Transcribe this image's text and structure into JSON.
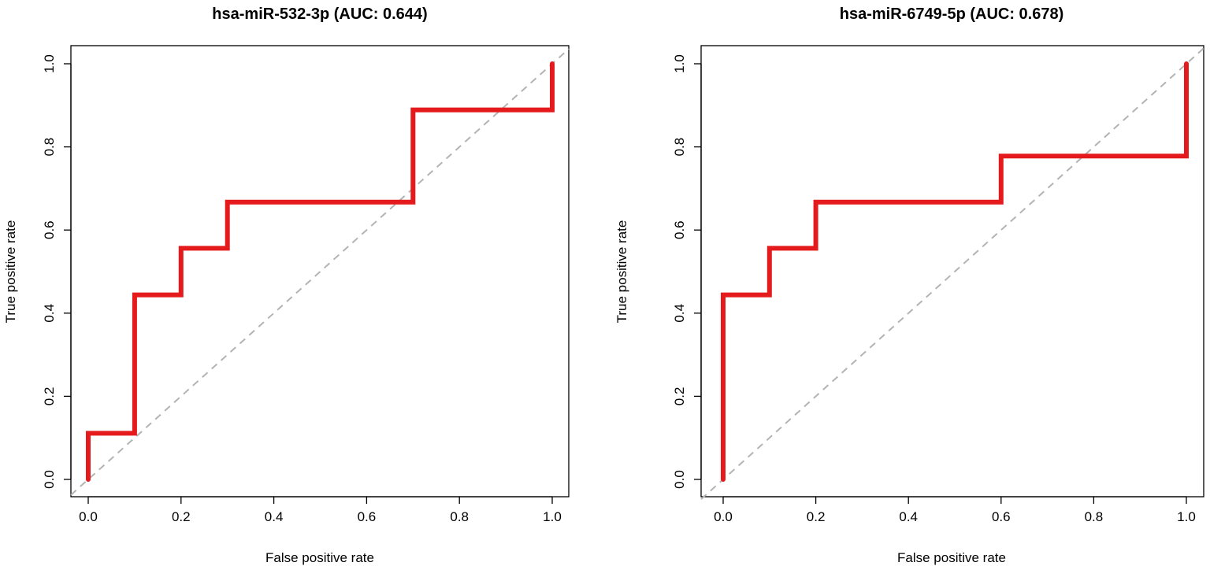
{
  "chart_data": [
    {
      "type": "line",
      "title": "hsa-miR-532-3p (AUC: 0.644)",
      "xlabel": "False positive rate",
      "ylabel": "True positive rate",
      "xlim": [
        0.0,
        1.0
      ],
      "ylim": [
        0.0,
        1.0
      ],
      "x_ticks": [
        "0.0",
        "0.2",
        "0.4",
        "0.6",
        "0.8",
        "1.0"
      ],
      "y_ticks": [
        "0.0",
        "0.2",
        "0.4",
        "0.6",
        "0.8",
        "1.0"
      ],
      "grid": false,
      "series": [
        {
          "color": "#e41a1c",
          "x": [
            0.0,
            0.0,
            0.1,
            0.1,
            0.2,
            0.2,
            0.3,
            0.3,
            0.7,
            0.7,
            1.0,
            1.0
          ],
          "y": [
            0.0,
            0.111,
            0.111,
            0.444,
            0.444,
            0.556,
            0.556,
            0.667,
            0.667,
            0.889,
            0.889,
            1.0
          ]
        }
      ],
      "reference_line": {
        "color": "#b3b3b3",
        "style": "dashed",
        "x": [
          0.0,
          1.0
        ],
        "y": [
          0.0,
          1.0
        ]
      }
    },
    {
      "type": "line",
      "title": "hsa-miR-6749-5p (AUC: 0.678)",
      "xlabel": "False positive rate",
      "ylabel": "True positive rate",
      "xlim": [
        0.0,
        1.0
      ],
      "ylim": [
        0.0,
        1.0
      ],
      "x_ticks": [
        "0.0",
        "0.2",
        "0.4",
        "0.6",
        "0.8",
        "1.0"
      ],
      "y_ticks": [
        "0.0",
        "0.2",
        "0.4",
        "0.6",
        "0.8",
        "1.0"
      ],
      "grid": false,
      "series": [
        {
          "color": "#e41a1c",
          "x": [
            0.0,
            0.0,
            0.1,
            0.1,
            0.2,
            0.2,
            0.6,
            0.6,
            1.0,
            1.0
          ],
          "y": [
            0.0,
            0.444,
            0.444,
            0.556,
            0.556,
            0.667,
            0.667,
            0.778,
            0.778,
            1.0
          ]
        }
      ],
      "reference_line": {
        "color": "#b3b3b3",
        "style": "dashed",
        "x": [
          0.0,
          1.0
        ],
        "y": [
          0.0,
          1.0
        ]
      }
    }
  ]
}
